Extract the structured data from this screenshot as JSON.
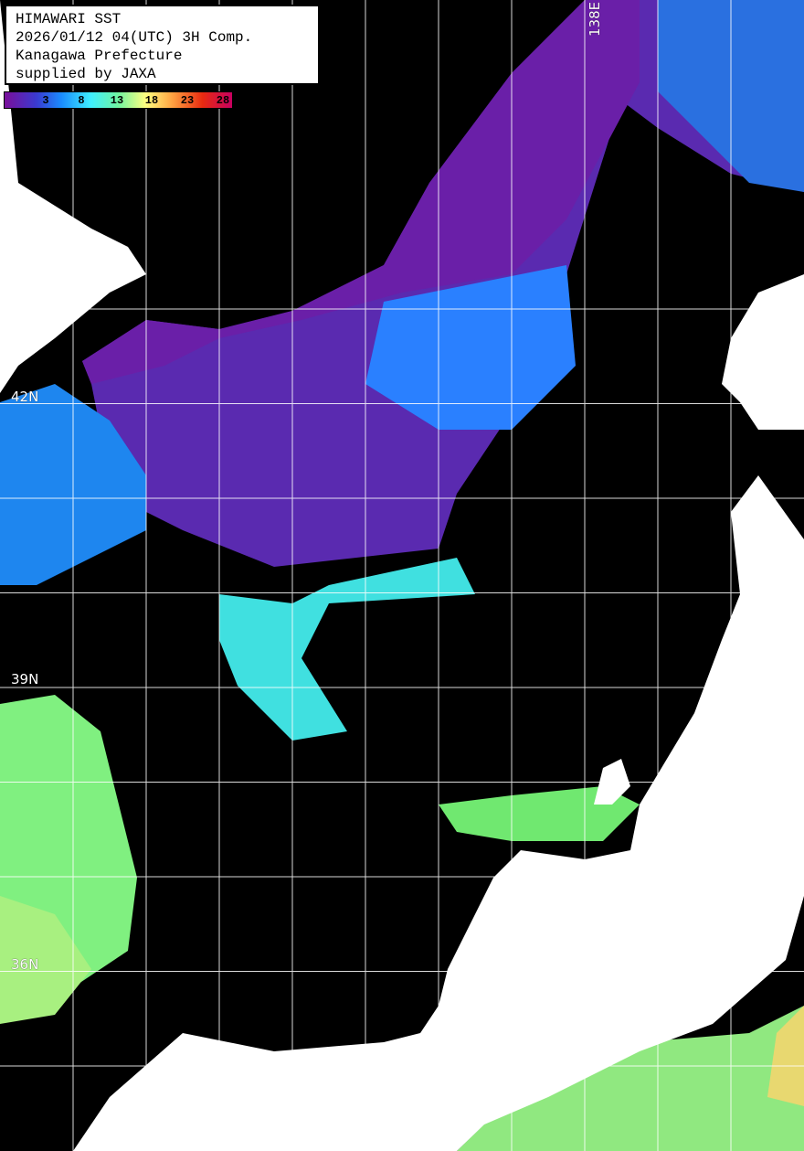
{
  "title_box": {
    "lines": [
      "HIMAWARI SST",
      "2026/01/12 04(UTC) 3H Comp.",
      "Kanagawa Prefecture",
      "supplied by JAXA"
    ]
  },
  "colorbar": {
    "ticks": [
      "3",
      "8",
      "13",
      "18",
      "23",
      "28"
    ],
    "colors": [
      "#7a0f9a",
      "#3a3ad0",
      "#1a8cff",
      "#3ff0ff",
      "#70f5a0",
      "#ffff80",
      "#ffa040",
      "#e82a10",
      "#c80060"
    ]
  },
  "grid_labels": {
    "lat": [
      "42N",
      "39N",
      "36N"
    ],
    "lon": [
      "138E"
    ]
  },
  "colors": {
    "land": "#ffffff",
    "no_data": "#000000",
    "grid": "#ffffff"
  }
}
